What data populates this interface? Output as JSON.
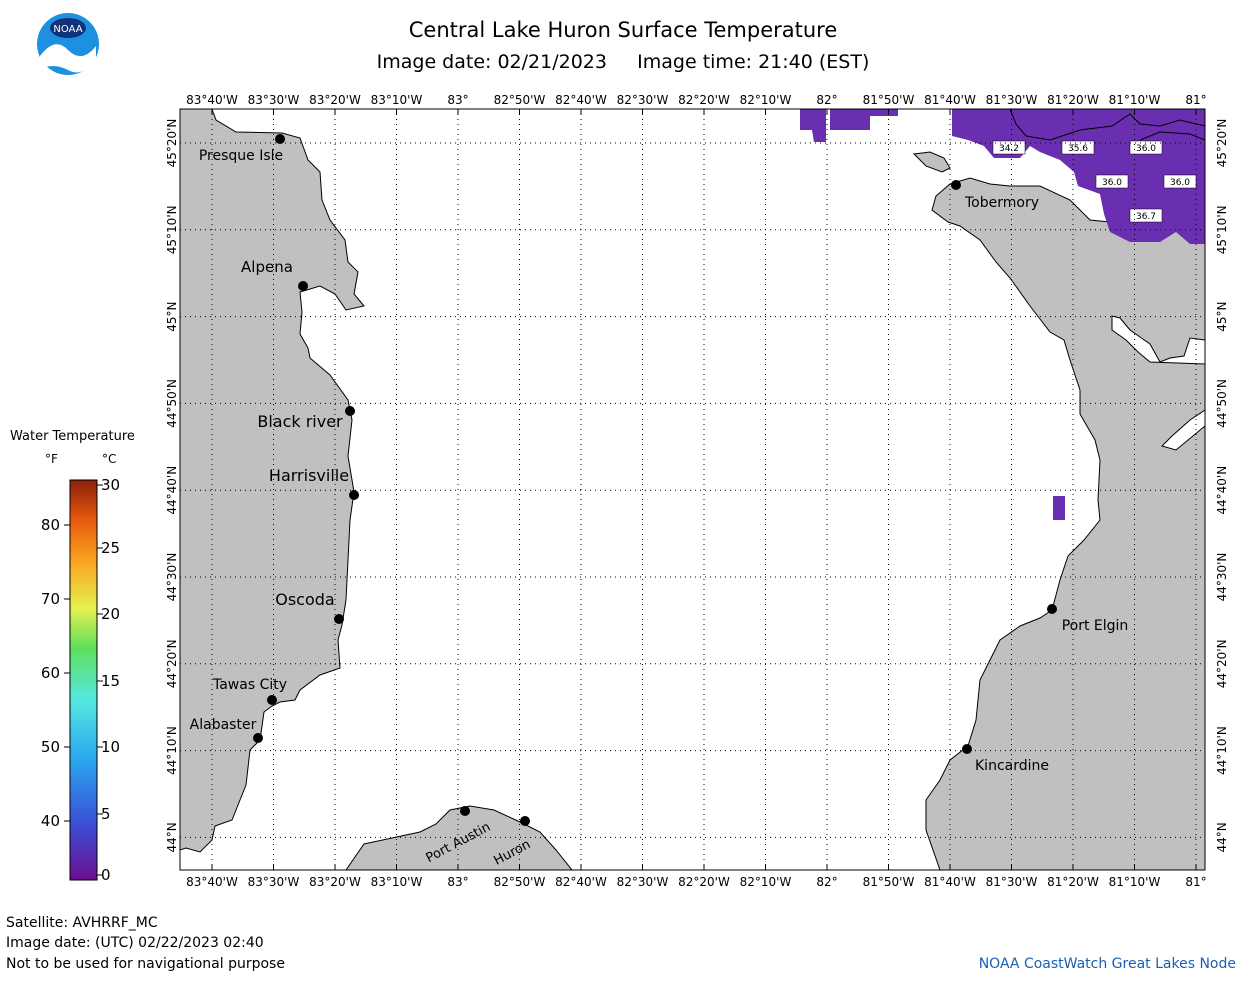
{
  "header": {
    "title": "Central Lake Huron Surface Temperature",
    "subtitle": "Image date: 02/21/2023     Image time: 21:40 (EST)"
  },
  "logo": {
    "text": "NOAA"
  },
  "map": {
    "lon_ticks": [
      "83°40'W",
      "83°30'W",
      "83°20'W",
      "83°10'W",
      "83°",
      "82°50'W",
      "82°40'W",
      "82°30'W",
      "82°20'W",
      "82°10'W",
      "82°",
      "81°50'W",
      "81°40'W",
      "81°30'W",
      "81°20'W",
      "81°10'W",
      "81°"
    ],
    "lat_ticks": [
      "45°20'N",
      "45°10'N",
      "45°N",
      "44°50'N",
      "44°40'N",
      "44°30'N",
      "44°20'N",
      "44°10'N",
      "44°N"
    ],
    "cities": [
      {
        "name": "Presque Isle"
      },
      {
        "name": "Alpena"
      },
      {
        "name": "Black river"
      },
      {
        "name": "Harrisville"
      },
      {
        "name": "Oscoda"
      },
      {
        "name": "Tawas City"
      },
      {
        "name": "Alabaster"
      },
      {
        "name": "Port Austin"
      },
      {
        "name": "Huron"
      },
      {
        "name": "Tobermory"
      },
      {
        "name": "Port Elgin"
      },
      {
        "name": "Kincardine"
      }
    ],
    "temp_labels": [
      "34.2",
      "35.6",
      "36.0",
      "36.0",
      "36.0",
      "36.7"
    ],
    "colors": {
      "land": "#c0c0c0",
      "water": "#ffffff",
      "cold": "#6a2fb0"
    }
  },
  "legend": {
    "title": "Water Temperature",
    "unit_f": "°F",
    "unit_c": "°C",
    "f_ticks": [
      "80",
      "70",
      "60",
      "50",
      "40"
    ],
    "c_ticks": [
      "30",
      "25",
      "20",
      "15",
      "10",
      "5",
      "0"
    ]
  },
  "footer": {
    "satellite": "Satellite: AVHRRF_MC",
    "utc_date": "Image date: (UTC) 02/22/2023  02:40",
    "disclaimer": "Not to be used for navigational purpose",
    "credit": "NOAA CoastWatch Great Lakes Node"
  }
}
